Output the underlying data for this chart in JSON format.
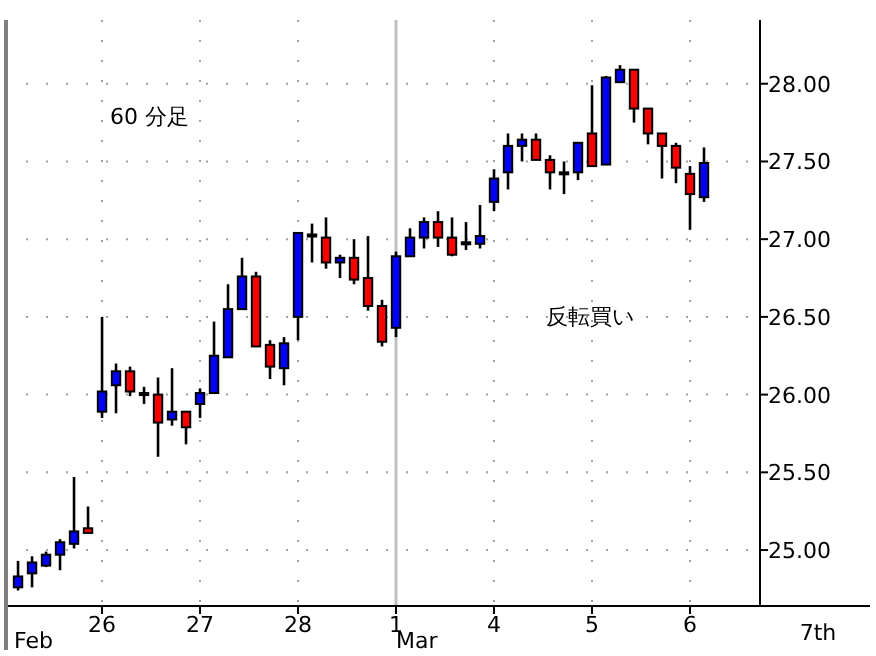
{
  "chart_data": {
    "type": "candlestick",
    "categories": [
      null,
      null,
      null,
      null,
      null,
      null,
      "26",
      null,
      null,
      null,
      null,
      null,
      null,
      "27",
      null,
      null,
      null,
      null,
      null,
      null,
      "28",
      null,
      null,
      null,
      null,
      null,
      null,
      "1",
      null,
      null,
      null,
      null,
      null,
      null,
      "4",
      null,
      null,
      null,
      null,
      null,
      null,
      "5",
      null,
      null,
      null,
      null,
      null,
      null,
      "6",
      null
    ],
    "ohlc": [
      [
        24.76,
        24.93,
        24.74,
        24.83
      ],
      [
        24.85,
        24.96,
        24.76,
        24.92
      ],
      [
        24.9,
        24.99,
        24.89,
        24.97
      ],
      [
        24.97,
        25.07,
        24.87,
        25.05
      ],
      [
        25.04,
        25.47,
        25.01,
        25.12
      ],
      [
        25.14,
        25.28,
        25.11,
        25.11
      ],
      [
        25.89,
        26.5,
        25.85,
        26.02
      ],
      [
        26.06,
        26.2,
        25.88,
        26.15
      ],
      [
        26.15,
        26.18,
        25.99,
        26.02
      ],
      [
        26.0,
        26.05,
        25.94,
        26.01
      ],
      [
        26.0,
        26.11,
        25.6,
        25.82
      ],
      [
        25.84,
        26.17,
        25.8,
        25.89
      ],
      [
        25.89,
        25.89,
        25.68,
        25.79
      ],
      [
        25.94,
        26.04,
        25.85,
        26.01
      ],
      [
        26.01,
        26.47,
        26.01,
        26.25
      ],
      [
        26.24,
        26.71,
        26.24,
        26.55
      ],
      [
        26.55,
        26.88,
        26.55,
        26.76
      ],
      [
        26.76,
        26.79,
        26.31,
        26.31
      ],
      [
        26.32,
        26.35,
        26.1,
        26.18
      ],
      [
        26.17,
        26.37,
        26.06,
        26.33
      ],
      [
        26.5,
        27.04,
        26.35,
        27.04
      ],
      [
        27.02,
        27.1,
        26.85,
        27.03
      ],
      [
        27.01,
        27.14,
        26.81,
        26.85
      ],
      [
        26.85,
        26.9,
        26.75,
        26.88
      ],
      [
        26.88,
        27.0,
        26.71,
        26.74
      ],
      [
        26.75,
        27.02,
        26.54,
        26.57
      ],
      [
        26.57,
        26.61,
        26.31,
        26.34
      ],
      [
        26.43,
        26.92,
        26.37,
        26.89
      ],
      [
        26.89,
        27.07,
        26.89,
        27.01
      ],
      [
        27.01,
        27.14,
        26.94,
        27.11
      ],
      [
        27.11,
        27.18,
        26.95,
        27.01
      ],
      [
        27.01,
        27.14,
        26.89,
        26.9
      ],
      [
        26.98,
        27.11,
        26.93,
        26.98
      ],
      [
        26.97,
        27.22,
        26.94,
        27.02
      ],
      [
        27.24,
        27.45,
        27.18,
        27.39
      ],
      [
        27.43,
        27.68,
        27.32,
        27.6
      ],
      [
        27.6,
        27.68,
        27.5,
        27.64
      ],
      [
        27.64,
        27.68,
        27.51,
        27.51
      ],
      [
        27.51,
        27.54,
        27.32,
        27.43
      ],
      [
        27.43,
        27.5,
        27.29,
        27.43
      ],
      [
        27.43,
        27.62,
        27.38,
        27.62
      ],
      [
        27.68,
        27.99,
        27.47,
        27.47
      ],
      [
        27.48,
        28.05,
        27.48,
        28.04
      ],
      [
        28.01,
        28.12,
        28.01,
        28.09
      ],
      [
        28.09,
        28.09,
        27.75,
        27.84
      ],
      [
        27.84,
        27.84,
        27.61,
        27.68
      ],
      [
        27.68,
        27.68,
        27.39,
        27.6
      ],
      [
        27.6,
        27.62,
        27.36,
        27.46
      ],
      [
        27.42,
        27.47,
        27.06,
        27.29
      ],
      [
        27.27,
        27.59,
        27.24,
        27.49
      ]
    ],
    "colors": [
      "#0000ff",
      "#0000ff",
      "#0000ff",
      "#0000ff",
      "#0000ff",
      "#ff0000",
      "#0000ff",
      "#0000ff",
      "#ff0000",
      "#000000",
      "#ff0000",
      "#0000ff",
      "#ff0000",
      "#0000ff",
      "#0000ff",
      "#0000ff",
      "#0000ff",
      "#ff0000",
      "#ff0000",
      "#0000ff",
      "#0000ff",
      "#000000",
      "#ff0000",
      "#0000ff",
      "#ff0000",
      "#ff0000",
      "#ff0000",
      "#0000ff",
      "#0000ff",
      "#0000ff",
      "#ff0000",
      "#ff0000",
      "#000000",
      "#0000ff",
      "#0000ff",
      "#0000ff",
      "#0000ff",
      "#ff0000",
      "#ff0000",
      "#000000",
      "#0000ff",
      "#ff0000",
      "#0000ff",
      "#0000ff",
      "#ff0000",
      "#ff0000",
      "#ff0000",
      "#ff0000",
      "#ff0000",
      "#0000ff"
    ],
    "ylim": [
      24.64,
      28.41
    ],
    "yticks": [
      {
        "value": 25,
        "label": "25.00"
      },
      {
        "value": 25.5,
        "label": "25.50"
      },
      {
        "value": 26,
        "label": "26.00"
      },
      {
        "value": 26.5,
        "label": "26.50"
      },
      {
        "value": 27,
        "label": "27.00"
      },
      {
        "value": 27.5,
        "label": "27.50"
      },
      {
        "value": 28,
        "label": "28.00"
      }
    ],
    "grid": true,
    "ref_lines": [
      {
        "axis": "x",
        "value": "1",
        "label": null,
        "color": "#c0c0c0",
        "line_style": "solid"
      }
    ],
    "annotations": [
      "60 分足",
      "反転買い",
      "Feb",
      "Mar",
      "7th"
    ]
  }
}
